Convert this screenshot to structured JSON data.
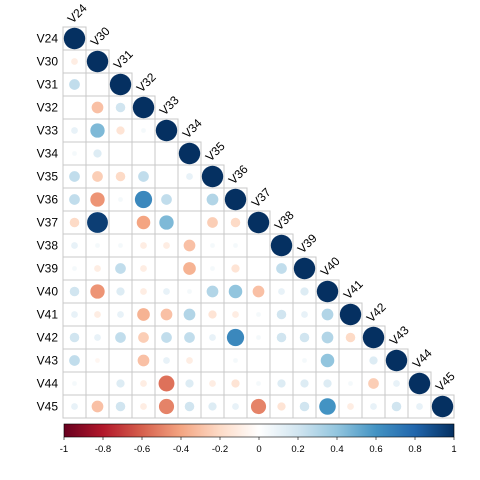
{
  "chart_data": {
    "type": "heatmap",
    "variables": [
      "V24",
      "V30",
      "V31",
      "V32",
      "V33",
      "V34",
      "V35",
      "V36",
      "V37",
      "V38",
      "V39",
      "V40",
      "V41",
      "V42",
      "V43",
      "V44",
      "V45"
    ],
    "triangle": "lower",
    "correlations": [
      [
        1
      ],
      [
        -0.1,
        1
      ],
      [
        0.25,
        0,
        1
      ],
      [
        0,
        -0.3,
        0.2,
        1
      ],
      [
        0.1,
        0.45,
        -0.15,
        0.05,
        1
      ],
      [
        0.05,
        0.15,
        0,
        0,
        0,
        1
      ],
      [
        0.25,
        -0.25,
        -0.2,
        0.25,
        0,
        0.1,
        1
      ],
      [
        0.25,
        -0.45,
        0.05,
        0.65,
        0.25,
        0,
        0.3,
        1
      ],
      [
        -0.2,
        0.95,
        0,
        -0.4,
        0.45,
        0,
        -0.25,
        -0.2,
        1
      ],
      [
        0.1,
        0.05,
        0.05,
        -0.1,
        -0.1,
        -0.3,
        0.05,
        0.05,
        0,
        1
      ],
      [
        0.05,
        -0.1,
        0.25,
        -0.1,
        0,
        -0.35,
        0.05,
        -0.15,
        0,
        0.25,
        1
      ],
      [
        0.2,
        -0.45,
        0.15,
        -0.1,
        0.1,
        0.05,
        0.3,
        0.4,
        -0.3,
        0.1,
        0.15,
        1
      ],
      [
        0.1,
        -0.1,
        0.1,
        -0.35,
        -0.3,
        0.3,
        -0.15,
        -0.1,
        0.05,
        0.2,
        0.1,
        0.3,
        1
      ],
      [
        0.2,
        0.1,
        0.25,
        -0.25,
        0.25,
        0.25,
        0.1,
        0.65,
        0.05,
        0.2,
        0.2,
        0.3,
        -0.2,
        1
      ],
      [
        0.25,
        -0.05,
        0,
        -0.3,
        0.1,
        -0.1,
        0,
        0.05,
        0,
        0,
        0.05,
        0.4,
        0,
        0.15,
        1
      ],
      [
        0.05,
        0,
        0.15,
        -0.1,
        -0.55,
        0.15,
        -0.1,
        -0.15,
        0.05,
        0.15,
        0.15,
        0.15,
        0.05,
        -0.25,
        0.1,
        1
      ],
      [
        0.1,
        -0.3,
        0.2,
        -0.1,
        -0.5,
        0.2,
        0.15,
        0.1,
        -0.5,
        -0.15,
        0.2,
        0.6,
        -0.1,
        0.1,
        0.2,
        0.1,
        1
      ]
    ],
    "color_scale": {
      "min": -1,
      "max": 1,
      "ticks": [
        -1,
        -0.8,
        -0.6,
        -0.4,
        -0.2,
        0,
        0.2,
        0.4,
        0.6,
        0.8,
        1
      ],
      "tick_labels": [
        "-1",
        "-0.8",
        "-0.6",
        "-0.4",
        "-0.2",
        "0",
        "0.2",
        "0.4",
        "0.6",
        "0.8",
        "1"
      ],
      "colors": [
        "#67001F",
        "#B2182B",
        "#D6604D",
        "#F4A582",
        "#FDDBC7",
        "#FFFFFF",
        "#D1E5F0",
        "#92C5DE",
        "#4393C3",
        "#2166AC",
        "#053061"
      ]
    },
    "legend": "bottom",
    "grid": true
  }
}
